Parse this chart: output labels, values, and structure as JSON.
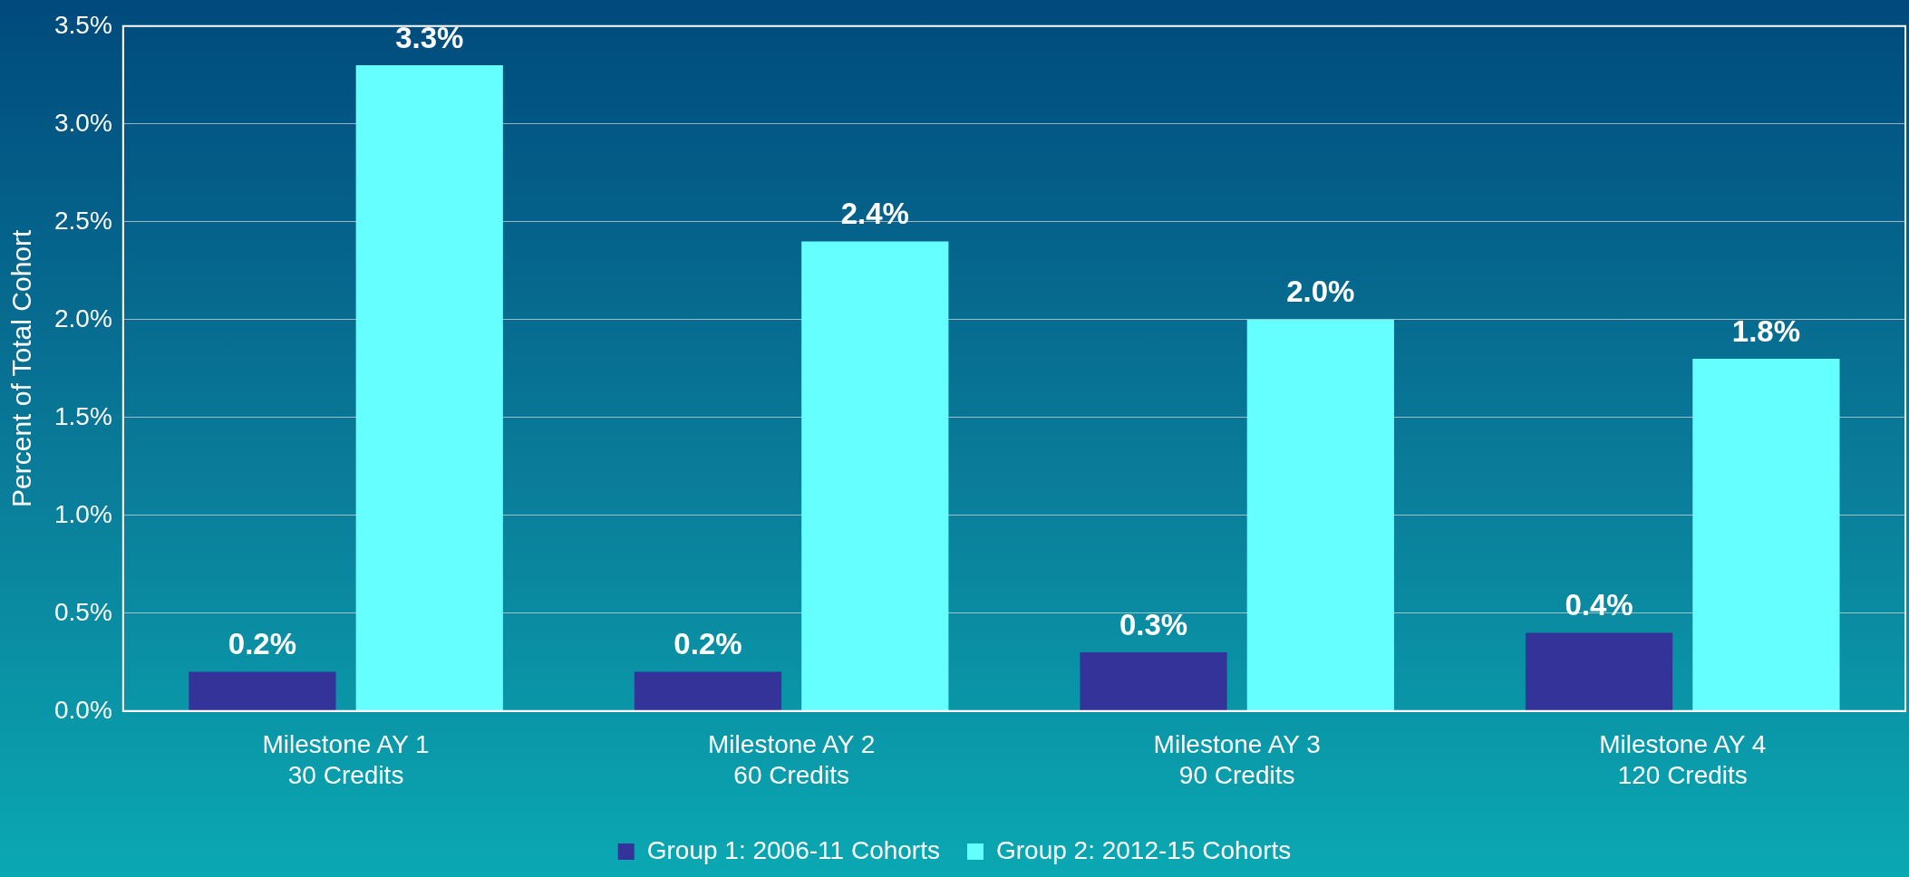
{
  "chart_data": {
    "type": "bar",
    "ylabel": "Percent of Total Cohort",
    "categories": [
      "Milestone AY 1\n30 Credits",
      "Milestone AY 2\n60 Credits",
      "Milestone AY 3\n90 Credits",
      "Milestone AY 4\n120 Credits"
    ],
    "series": [
      {
        "name": "Group 1: 2006-11 Cohorts",
        "color": "#333399",
        "values": [
          0.2,
          0.2,
          0.3,
          0.4
        ],
        "value_labels": [
          "0.2%",
          "0.2%",
          "0.3%",
          "0.4%"
        ]
      },
      {
        "name": "Group 2: 2012-15 Cohorts",
        "color": "#66ffff",
        "values": [
          3.3,
          2.4,
          2.0,
          1.8
        ],
        "value_labels": [
          "3.3%",
          "2.4%",
          "2.0%",
          "1.8%"
        ]
      }
    ],
    "ylim": [
      0,
      3.5
    ],
    "yticks": [
      {
        "value": 0,
        "label": "0.0%"
      },
      {
        "value": 0.5,
        "label": "0.5%"
      },
      {
        "value": 1,
        "label": "1.0%"
      },
      {
        "value": 1.5,
        "label": "1.5%"
      },
      {
        "value": 2,
        "label": "2.0%"
      },
      {
        "value": 2.5,
        "label": "2.5%"
      },
      {
        "value": 3,
        "label": "3.0%"
      },
      {
        "value": 3.5,
        "label": "3.5%"
      }
    ],
    "grid": "y",
    "legend": "bottom"
  }
}
